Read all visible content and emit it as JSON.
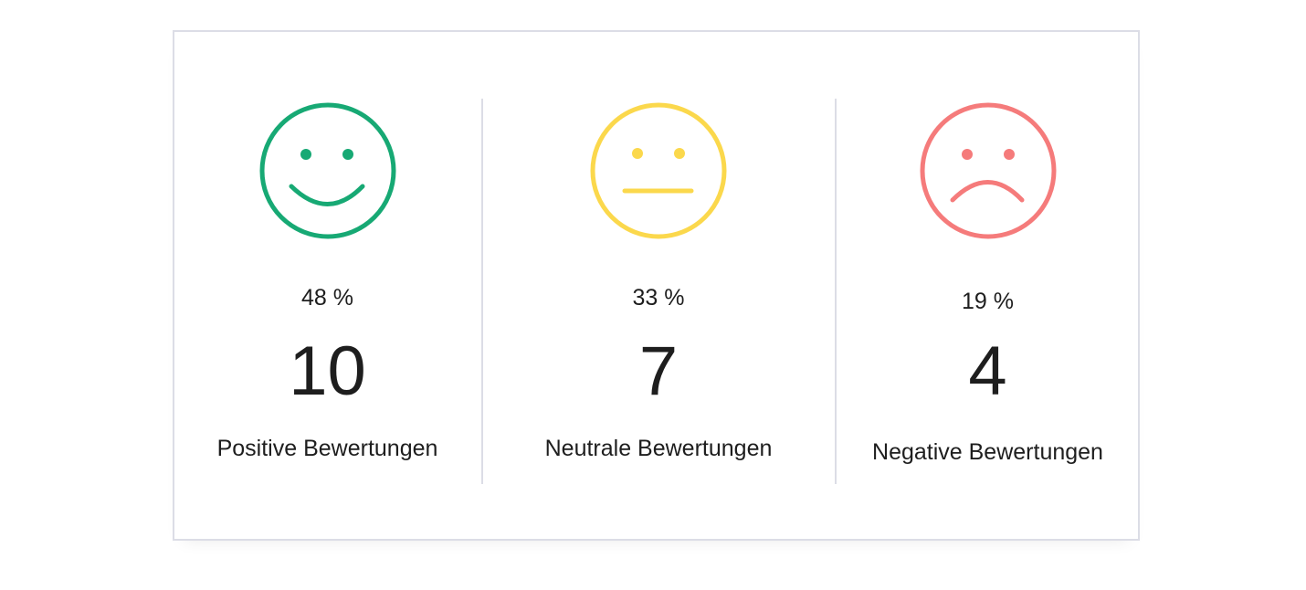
{
  "ratings": [
    {
      "key": "positive",
      "icon": "smiley-happy-icon",
      "color": "#17a974",
      "percent": "48 %",
      "count": "10",
      "label": "Positive Bewertungen"
    },
    {
      "key": "neutral",
      "icon": "smiley-neutral-icon",
      "color": "#fbd84c",
      "percent": "33 %",
      "count": "7",
      "label": "Neutrale Bewertungen"
    },
    {
      "key": "negative",
      "icon": "smiley-sad-icon",
      "color": "#f57b7b",
      "percent": "19 %",
      "count": "4",
      "label": "Negative Bewertungen"
    }
  ]
}
